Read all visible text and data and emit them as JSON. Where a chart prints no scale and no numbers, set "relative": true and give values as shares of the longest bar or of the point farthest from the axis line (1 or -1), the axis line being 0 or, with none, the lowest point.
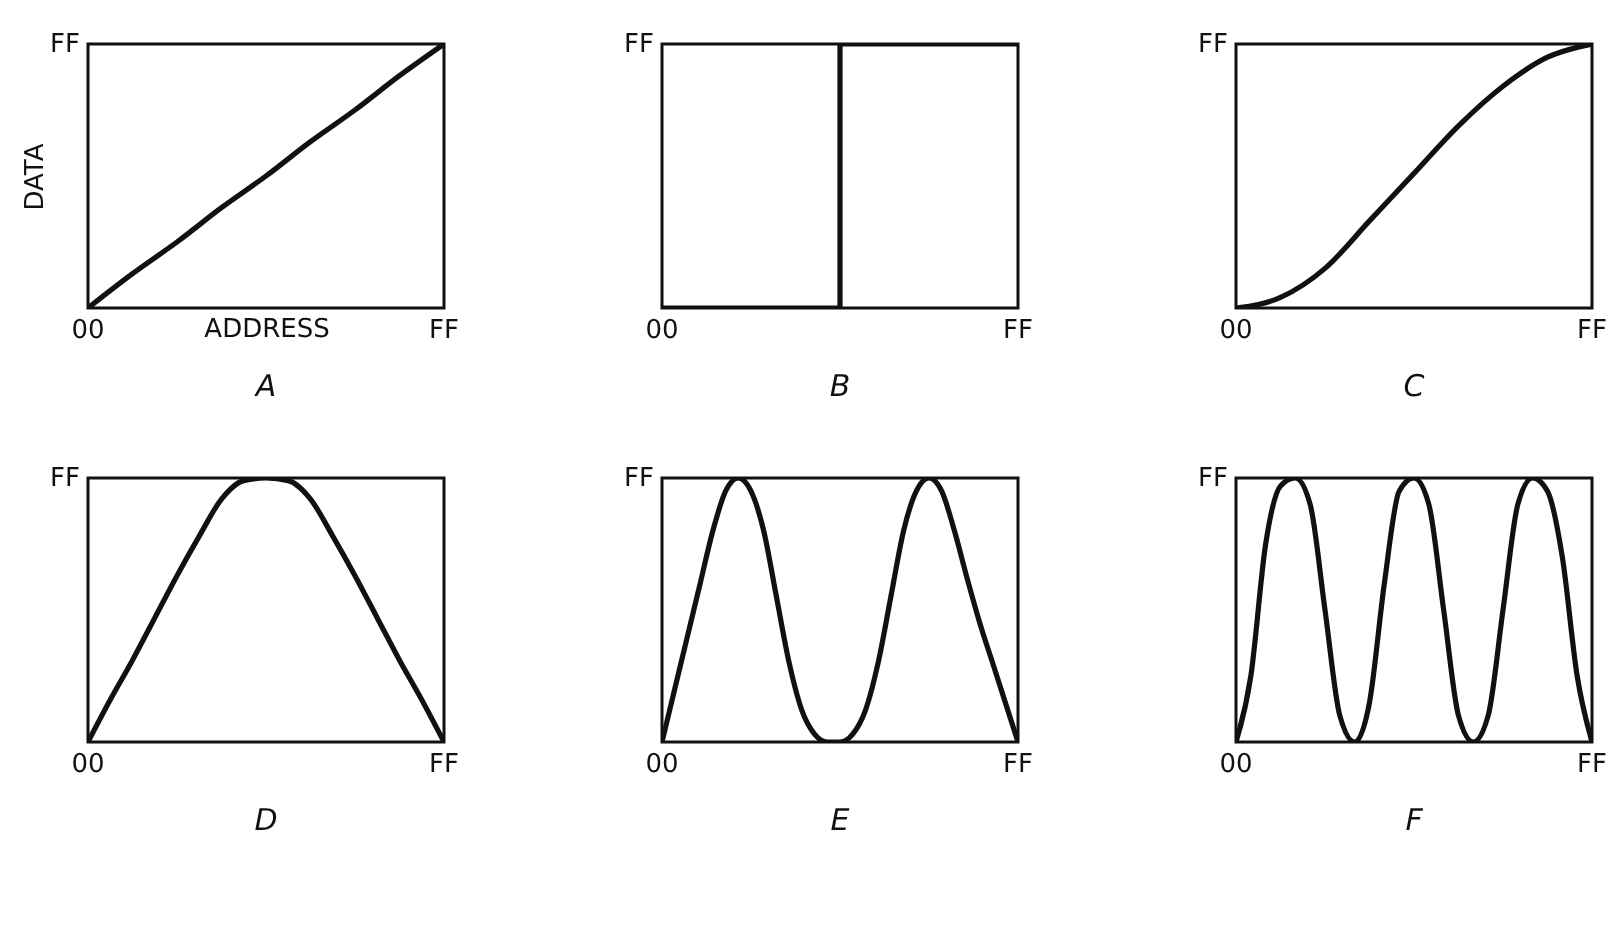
{
  "chart_data": [
    {
      "type": "line",
      "relative": true,
      "title": "A",
      "xlabel": "ADDRESS",
      "ylabel": "DATA",
      "annotations": [
        "FF",
        "00",
        "FF"
      ],
      "categories": [
        null,
        null,
        null,
        null,
        null,
        null,
        null,
        null,
        null
      ],
      "series": [
        {
          "color": "#111111",
          "values": [
            0,
            0.13,
            0.25,
            0.38,
            0.5,
            0.63,
            0.75,
            0.88,
            1
          ]
        }
      ]
    },
    {
      "type": "step",
      "relative": true,
      "title": "B",
      "annotations": [
        "FF",
        "00",
        "FF"
      ],
      "categories": [
        null,
        null,
        null
      ],
      "series": [
        {
          "color": "#111111",
          "values": [
            0,
            1,
            1
          ]
        }
      ]
    },
    {
      "type": "line",
      "relative": true,
      "title": "C",
      "annotations": [
        "FF",
        "00",
        "FF"
      ],
      "categories": [
        null,
        null,
        null,
        null,
        null,
        null,
        null,
        null,
        null
      ],
      "series": [
        {
          "color": "#111111",
          "values": [
            0,
            0.04,
            0.15,
            0.33,
            0.51,
            0.69,
            0.84,
            0.95,
            1
          ]
        }
      ]
    },
    {
      "type": "line",
      "relative": true,
      "title": "D",
      "annotations": [
        "FF",
        "00",
        "FF"
      ],
      "categories": [
        null,
        null,
        null,
        null,
        null,
        null,
        null,
        null,
        null,
        null,
        null,
        null,
        null,
        null,
        null,
        null,
        null
      ],
      "series": [
        {
          "color": "#111111",
          "values": [
            0,
            0.16,
            0.31,
            0.47,
            0.63,
            0.78,
            0.92,
            0.99,
            1,
            0.99,
            0.92,
            0.78,
            0.63,
            0.47,
            0.31,
            0.16,
            0
          ]
        }
      ]
    },
    {
      "type": "line",
      "relative": true,
      "title": "E",
      "annotations": [
        "FF",
        "00",
        "FF"
      ],
      "categories": [
        null,
        null,
        null,
        null,
        null,
        null,
        null,
        null,
        null,
        null,
        null,
        null,
        null,
        null,
        null,
        null,
        null,
        null,
        null,
        null,
        null,
        null,
        null,
        null,
        null,
        null,
        null,
        null,
        null
      ],
      "series": [
        {
          "color": "#111111",
          "values": [
            0,
            0.2,
            0.4,
            0.6,
            0.8,
            0.95,
            1,
            0.95,
            0.8,
            0.55,
            0.3,
            0.12,
            0.03,
            0,
            0,
            0.03,
            0.12,
            0.3,
            0.55,
            0.8,
            0.95,
            1,
            0.95,
            0.8,
            0.62,
            0.45,
            0.3,
            0.15,
            0
          ]
        }
      ]
    },
    {
      "type": "line",
      "relative": true,
      "title": "F",
      "annotations": [
        "FF",
        "00",
        "FF"
      ],
      "categories": [
        null,
        null,
        null,
        null,
        null,
        null,
        null,
        null,
        null,
        null,
        null,
        null,
        null,
        null,
        null,
        null,
        null,
        null,
        null,
        null,
        null,
        null,
        null,
        null,
        null
      ],
      "series": [
        {
          "color": "#111111",
          "values": [
            0,
            0.25,
            0.75,
            0.97,
            1,
            0.9,
            0.5,
            0.1,
            0,
            0.15,
            0.6,
            0.95,
            1,
            0.9,
            0.5,
            0.1,
            0,
            0.1,
            0.5,
            0.9,
            1,
            0.95,
            0.7,
            0.25,
            0
          ]
        }
      ]
    }
  ]
}
